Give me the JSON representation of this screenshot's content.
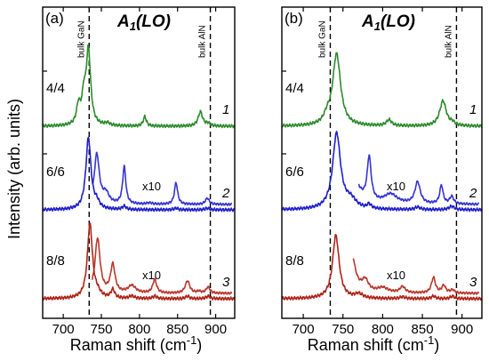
{
  "chart_data": {
    "type": "line",
    "ylabel": "Intensity (arb. units)",
    "xlabel_text": "Raman shift (cm",
    "xlabel_sup": "-1",
    "xlabel_end": ")",
    "xlim": [
      673,
      925
    ],
    "xticks": [
      700,
      750,
      800,
      850,
      900
    ],
    "mode_label": {
      "main": "A",
      "sub": "1",
      "rest": "(LO)"
    },
    "reference_lines": [
      {
        "name": "bulk GaN",
        "x": 734
      },
      {
        "name": "bulk AlN",
        "x": 893
      }
    ],
    "panels": [
      {
        "id": "a",
        "letter": "(a)",
        "series": [
          {
            "ratio": "4/4",
            "number": "1",
            "color": "#2e8b2e",
            "offset": 0,
            "scale": 1,
            "peaks": [
              [
                720,
                0.22,
                3
              ],
              [
                727,
                0.3,
                3
              ],
              [
                733,
                0.88,
                3.5
              ],
              [
                758,
                0.03,
                4
              ],
              [
                807,
                0.11,
                2.5
              ],
              [
                880,
                0.17,
                3.5
              ],
              [
                890,
                0.03,
                3
              ]
            ]
          },
          {
            "ratio": "6/6",
            "number": "2",
            "color": "#1f1fcc",
            "offset": 1,
            "scale": 1,
            "peaks": [
              [
                733,
                0.85,
                4
              ],
              [
                744,
                0.07,
                4
              ],
              [
                780,
                0.04,
                3
              ],
              [
                848,
                0.02,
                3
              ],
              [
                889,
                0.02,
                3
              ]
            ]
          },
          {
            "ratio": "8/8",
            "number": "3",
            "color": "#b02418",
            "offset": 2,
            "scale": 1,
            "peaks": [
              [
                735,
                0.88,
                4
              ],
              [
                745,
                0.05,
                5
              ],
              [
                765,
                0.1,
                3
              ],
              [
                790,
                0.03,
                4
              ],
              [
                820,
                0.03,
                3
              ],
              [
                863,
                0.03,
                3
              ],
              [
                890,
                0.03,
                3
              ]
            ]
          }
        ],
        "magnified": [
          {
            "series_index": 1,
            "factor_label": "x10",
            "x_start": 739,
            "peaks": [
              [
                744,
                0.8,
                4
              ],
              [
                756,
                0.16,
                5
              ],
              [
                780,
                0.6,
                2.5
              ],
              [
                813,
                0.02,
                5
              ],
              [
                848,
                0.35,
                2.5
              ],
              [
                889,
                0.1,
                3
              ]
            ]
          },
          {
            "series_index": 2,
            "factor_label": "x10",
            "x_start": 738,
            "peaks": [
              [
                745,
                0.88,
                4
              ],
              [
                765,
                0.45,
                3.5
              ],
              [
                790,
                0.12,
                6
              ],
              [
                820,
                0.22,
                3
              ],
              [
                863,
                0.2,
                3.5
              ],
              [
                878,
                0.03,
                3
              ],
              [
                890,
                0.1,
                3
              ]
            ]
          }
        ]
      },
      {
        "id": "b",
        "letter": "(b)",
        "series": [
          {
            "ratio": "4/4",
            "number": "1",
            "color": "#2e8b2e",
            "offset": 0,
            "scale": 1,
            "peaks": [
              [
                730,
                0.08,
                5
              ],
              [
                742,
                0.85,
                6
              ],
              [
                808,
                0.07,
                4
              ],
              [
                876,
                0.3,
                5
              ],
              [
                888,
                0.03,
                3
              ]
            ]
          },
          {
            "ratio": "6/6",
            "number": "2",
            "color": "#1f1fcc",
            "offset": 1,
            "scale": 1,
            "peaks": [
              [
                742,
                0.9,
                6
              ],
              [
                760,
                0.1,
                8
              ],
              [
                783,
                0.05,
                3
              ],
              [
                844,
                0.03,
                4
              ],
              [
                887,
                0.04,
                4
              ]
            ]
          },
          {
            "ratio": "8/8",
            "number": "3",
            "color": "#b02418",
            "offset": 2,
            "scale": 1,
            "peaks": [
              [
                741,
                0.75,
                5
              ],
              [
                770,
                0.05,
                6
              ],
              [
                825,
                0.02,
                4
              ],
              [
                864,
                0.03,
                3
              ],
              [
                888,
                0.03,
                3
              ]
            ]
          }
        ],
        "magnified": [
          {
            "series_index": 1,
            "factor_label": "x10",
            "x_start": 770,
            "peaks": [
              [
                760,
                0.7,
                8
              ],
              [
                783,
                0.7,
                3
              ],
              [
                810,
                0.15,
                10
              ],
              [
                844,
                0.35,
                4
              ],
              [
                874,
                0.3,
                2.5
              ],
              [
                887,
                0.12,
                3
              ]
            ]
          },
          {
            "series_index": 2,
            "factor_label": "x10",
            "x_start": 763,
            "peaks": [
              [
                760,
                0.7,
                6
              ],
              [
                778,
                0.18,
                5
              ],
              [
                800,
                0.08,
                8
              ],
              [
                825,
                0.1,
                4
              ],
              [
                864,
                0.25,
                3
              ],
              [
                877,
                0.12,
                3
              ],
              [
                888,
                0.05,
                3
              ]
            ]
          }
        ]
      }
    ]
  }
}
